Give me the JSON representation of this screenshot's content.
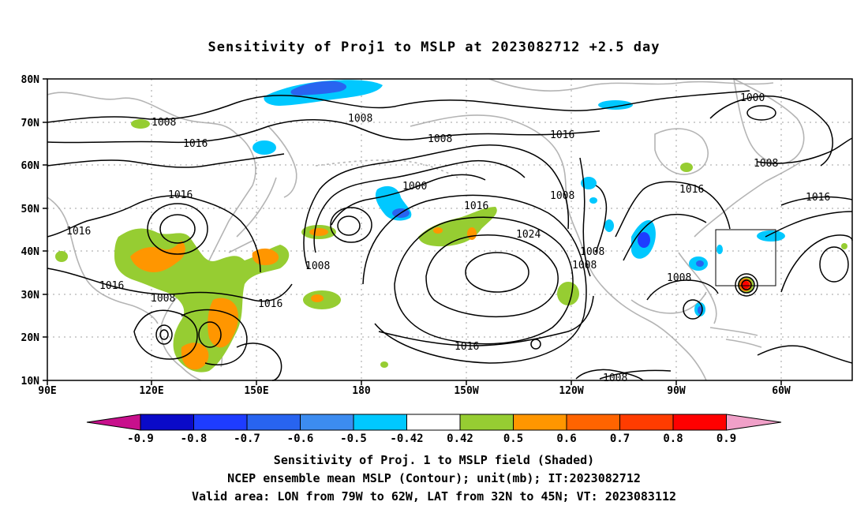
{
  "title": "Sensitivity of Proj1 to MSLP at 2023082712 +2.5 day",
  "lat_labels": [
    "80N",
    "70N",
    "60N",
    "50N",
    "40N",
    "30N",
    "20N",
    "10N"
  ],
  "lon_labels": [
    "90E",
    "120E",
    "150E",
    "180",
    "150W",
    "120W",
    "90W",
    "60W"
  ],
  "contour_labels": [
    "1008",
    "1008",
    "1008",
    "1016",
    "1016",
    "1016",
    "1016",
    "1000",
    "1016",
    "1024",
    "1008",
    "1008",
    "1008",
    "1016",
    "1016",
    "1008",
    "1008",
    "1008",
    "1016",
    "1016",
    "1000",
    "1008",
    "1016",
    "1008"
  ],
  "colorbar": {
    "labels": [
      "-0.9",
      "-0.8",
      "-0.7",
      "-0.6",
      "-0.5",
      "-0.42",
      "0.42",
      "0.5",
      "0.6",
      "0.7",
      "0.8",
      "0.9"
    ],
    "colors": [
      "#c8108c",
      "#0a0ac8",
      "#1e3cff",
      "#2864f0",
      "#3c8cf0",
      "#00c8ff",
      "#ffffff",
      "#96cd32",
      "#ff9600",
      "#ff6400",
      "#ff3c00",
      "#ff0000",
      "#f0a0c8"
    ]
  },
  "captions": {
    "line1": "Sensitivity of Proj. 1 to MSLP field (Shaded)",
    "line2": "NCEP ensemble mean MSLP (Contour); unit(mb); IT:2023082712",
    "line3": "Valid area: LON from 79W to 62W, LAT from 32N to 45N; VT: 2023083112"
  }
}
